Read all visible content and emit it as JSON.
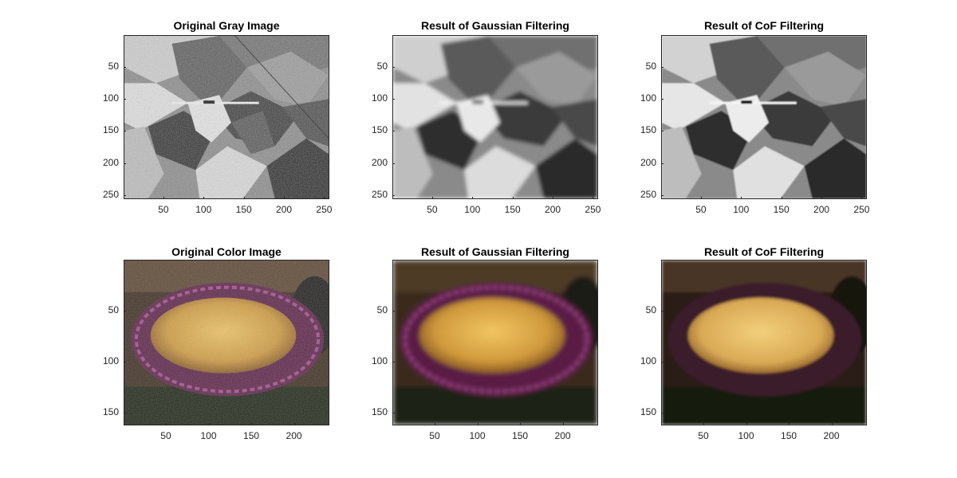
{
  "figure": {
    "panels": [
      {
        "id": "gray-original",
        "title": "Original Gray Image",
        "y_ticks": [
          "50",
          "100",
          "150",
          "200",
          "250"
        ],
        "x_ticks": [
          "50",
          "100",
          "150",
          "200",
          "250"
        ],
        "kind": "gray",
        "filter": "none"
      },
      {
        "id": "gray-gaussian",
        "title": "Result of Gaussian Filtering",
        "y_ticks": [
          "50",
          "100",
          "150",
          "200",
          "250"
        ],
        "x_ticks": [
          "50",
          "100",
          "150",
          "200",
          "250"
        ],
        "kind": "gray",
        "filter": "blur"
      },
      {
        "id": "gray-cof",
        "title": "Result of CoF Filtering",
        "y_ticks": [
          "50",
          "100",
          "150",
          "200",
          "250"
        ],
        "x_ticks": [
          "50",
          "100",
          "150",
          "200",
          "250"
        ],
        "kind": "gray",
        "filter": "smooth"
      },
      {
        "id": "color-original",
        "title": "Original Color Image",
        "y_ticks": [
          "50",
          "100",
          "150"
        ],
        "x_ticks": [
          "50",
          "100",
          "150",
          "200"
        ],
        "kind": "color",
        "filter": "none"
      },
      {
        "id": "color-gaussian",
        "title": "Result of Gaussian Filtering",
        "y_ticks": [
          "50",
          "100",
          "150"
        ],
        "x_ticks": [
          "50",
          "100",
          "150",
          "200"
        ],
        "kind": "color",
        "filter": "blur"
      },
      {
        "id": "color-cof",
        "title": "Result of CoF Filtering",
        "y_ticks": [
          "50",
          "100",
          "150"
        ],
        "x_ticks": [
          "50",
          "100",
          "150",
          "200"
        ],
        "kind": "color",
        "filter": "smooth"
      }
    ]
  },
  "colors": {
    "axis": "#262626",
    "corn": "#d9a441",
    "cloth_purple": "#6a2a5a",
    "soil": "#3a2a1c"
  }
}
